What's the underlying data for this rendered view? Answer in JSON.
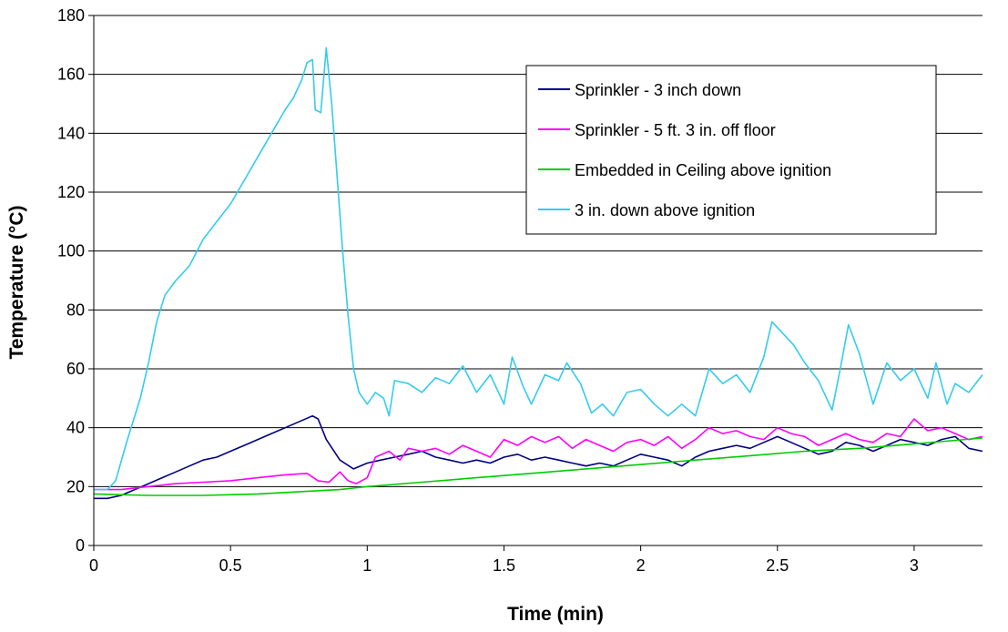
{
  "chart_data": {
    "type": "line",
    "xlabel": "Time (min)",
    "ylabel": "Temperature (°C)",
    "xlim": [
      0,
      3.25
    ],
    "ylim": [
      0,
      180
    ],
    "x_ticks": [
      "0",
      "0.5",
      "1",
      "1.5",
      "2",
      "2.5",
      "3"
    ],
    "y_ticks": [
      "0",
      "20",
      "40",
      "60",
      "80",
      "100",
      "120",
      "140",
      "160",
      "180"
    ],
    "grid": "horizontal",
    "legend_position": "top-right",
    "series": [
      {
        "name": "Sprinkler - 3 inch down",
        "color": "#000080",
        "points": [
          [
            0,
            16
          ],
          [
            0.05,
            16
          ],
          [
            0.1,
            17
          ],
          [
            0.15,
            19
          ],
          [
            0.2,
            21
          ],
          [
            0.25,
            23
          ],
          [
            0.3,
            25
          ],
          [
            0.35,
            27
          ],
          [
            0.4,
            29
          ],
          [
            0.45,
            30
          ],
          [
            0.5,
            32
          ],
          [
            0.55,
            34
          ],
          [
            0.6,
            36
          ],
          [
            0.65,
            38
          ],
          [
            0.7,
            40
          ],
          [
            0.75,
            42
          ],
          [
            0.8,
            44
          ],
          [
            0.82,
            43
          ],
          [
            0.85,
            36
          ],
          [
            0.9,
            29
          ],
          [
            0.95,
            26
          ],
          [
            1.0,
            28
          ],
          [
            1.05,
            29
          ],
          [
            1.1,
            30
          ],
          [
            1.15,
            31
          ],
          [
            1.2,
            32
          ],
          [
            1.25,
            30
          ],
          [
            1.3,
            29
          ],
          [
            1.35,
            28
          ],
          [
            1.4,
            29
          ],
          [
            1.45,
            28
          ],
          [
            1.5,
            30
          ],
          [
            1.55,
            31
          ],
          [
            1.6,
            29
          ],
          [
            1.65,
            30
          ],
          [
            1.7,
            29
          ],
          [
            1.75,
            28
          ],
          [
            1.8,
            27
          ],
          [
            1.85,
            28
          ],
          [
            1.9,
            27
          ],
          [
            1.95,
            29
          ],
          [
            2.0,
            31
          ],
          [
            2.05,
            30
          ],
          [
            2.1,
            29
          ],
          [
            2.15,
            27
          ],
          [
            2.2,
            30
          ],
          [
            2.25,
            32
          ],
          [
            2.3,
            33
          ],
          [
            2.35,
            34
          ],
          [
            2.4,
            33
          ],
          [
            2.45,
            35
          ],
          [
            2.5,
            37
          ],
          [
            2.55,
            35
          ],
          [
            2.6,
            33
          ],
          [
            2.65,
            31
          ],
          [
            2.7,
            32
          ],
          [
            2.75,
            35
          ],
          [
            2.8,
            34
          ],
          [
            2.85,
            32
          ],
          [
            2.9,
            34
          ],
          [
            2.95,
            36
          ],
          [
            3.0,
            35
          ],
          [
            3.05,
            34
          ],
          [
            3.1,
            36
          ],
          [
            3.15,
            37
          ],
          [
            3.2,
            33
          ],
          [
            3.25,
            32
          ]
        ]
      },
      {
        "name": "Sprinkler - 5 ft. 3 in. off floor",
        "color": "#ff00ff",
        "points": [
          [
            0,
            19
          ],
          [
            0.1,
            19
          ],
          [
            0.2,
            20
          ],
          [
            0.3,
            21
          ],
          [
            0.4,
            21.5
          ],
          [
            0.5,
            22
          ],
          [
            0.6,
            23
          ],
          [
            0.7,
            24
          ],
          [
            0.78,
            24.5
          ],
          [
            0.82,
            22
          ],
          [
            0.86,
            21.5
          ],
          [
            0.9,
            25
          ],
          [
            0.93,
            22
          ],
          [
            0.96,
            21
          ],
          [
            1.0,
            23
          ],
          [
            1.03,
            30
          ],
          [
            1.08,
            32
          ],
          [
            1.12,
            29
          ],
          [
            1.15,
            33
          ],
          [
            1.2,
            32
          ],
          [
            1.25,
            33
          ],
          [
            1.3,
            31
          ],
          [
            1.35,
            34
          ],
          [
            1.4,
            32
          ],
          [
            1.45,
            30
          ],
          [
            1.5,
            36
          ],
          [
            1.55,
            34
          ],
          [
            1.6,
            37
          ],
          [
            1.65,
            35
          ],
          [
            1.7,
            37
          ],
          [
            1.75,
            33
          ],
          [
            1.8,
            36
          ],
          [
            1.85,
            34
          ],
          [
            1.9,
            32
          ],
          [
            1.95,
            35
          ],
          [
            2.0,
            36
          ],
          [
            2.05,
            34
          ],
          [
            2.1,
            37
          ],
          [
            2.15,
            33
          ],
          [
            2.2,
            36
          ],
          [
            2.25,
            40
          ],
          [
            2.3,
            38
          ],
          [
            2.35,
            39
          ],
          [
            2.4,
            37
          ],
          [
            2.45,
            36
          ],
          [
            2.5,
            40
          ],
          [
            2.55,
            38
          ],
          [
            2.6,
            37
          ],
          [
            2.65,
            34
          ],
          [
            2.7,
            36
          ],
          [
            2.75,
            38
          ],
          [
            2.8,
            36
          ],
          [
            2.85,
            35
          ],
          [
            2.9,
            38
          ],
          [
            2.95,
            37
          ],
          [
            3.0,
            43
          ],
          [
            3.05,
            39
          ],
          [
            3.1,
            40
          ],
          [
            3.15,
            38
          ],
          [
            3.2,
            36
          ],
          [
            3.25,
            37
          ]
        ]
      },
      {
        "name": "Embedded in Ceiling above ignition",
        "color": "#00cc00",
        "points": [
          [
            0,
            17.5
          ],
          [
            0.2,
            17
          ],
          [
            0.4,
            17
          ],
          [
            0.6,
            17.5
          ],
          [
            0.8,
            18.5
          ],
          [
            0.9,
            19
          ],
          [
            1.0,
            20
          ],
          [
            1.2,
            21.5
          ],
          [
            1.4,
            23
          ],
          [
            1.6,
            24.5
          ],
          [
            1.8,
            26
          ],
          [
            2.0,
            27.5
          ],
          [
            2.2,
            29
          ],
          [
            2.4,
            30.5
          ],
          [
            2.6,
            32
          ],
          [
            2.8,
            33
          ],
          [
            3.0,
            34.5
          ],
          [
            3.25,
            36.5
          ]
        ]
      },
      {
        "name": "3 in. down above ignition",
        "color": "#33ccee",
        "points": [
          [
            0,
            19
          ],
          [
            0.05,
            19
          ],
          [
            0.08,
            22
          ],
          [
            0.12,
            35
          ],
          [
            0.17,
            50
          ],
          [
            0.2,
            62
          ],
          [
            0.23,
            76
          ],
          [
            0.26,
            85
          ],
          [
            0.3,
            90
          ],
          [
            0.35,
            95
          ],
          [
            0.4,
            104
          ],
          [
            0.45,
            110
          ],
          [
            0.5,
            116
          ],
          [
            0.55,
            124
          ],
          [
            0.6,
            132
          ],
          [
            0.65,
            140
          ],
          [
            0.7,
            148
          ],
          [
            0.73,
            152
          ],
          [
            0.76,
            158
          ],
          [
            0.78,
            164
          ],
          [
            0.8,
            165
          ],
          [
            0.81,
            148
          ],
          [
            0.83,
            147
          ],
          [
            0.85,
            169
          ],
          [
            0.87,
            150
          ],
          [
            0.89,
            125
          ],
          [
            0.91,
            100
          ],
          [
            0.93,
            78
          ],
          [
            0.95,
            60
          ],
          [
            0.97,
            52
          ],
          [
            1.0,
            48
          ],
          [
            1.03,
            52
          ],
          [
            1.06,
            50
          ],
          [
            1.08,
            44
          ],
          [
            1.1,
            56
          ],
          [
            1.15,
            55
          ],
          [
            1.2,
            52
          ],
          [
            1.25,
            57
          ],
          [
            1.3,
            55
          ],
          [
            1.35,
            61
          ],
          [
            1.4,
            52
          ],
          [
            1.45,
            58
          ],
          [
            1.5,
            48
          ],
          [
            1.53,
            64
          ],
          [
            1.57,
            54
          ],
          [
            1.6,
            48
          ],
          [
            1.65,
            58
          ],
          [
            1.7,
            56
          ],
          [
            1.73,
            62
          ],
          [
            1.78,
            55
          ],
          [
            1.82,
            45
          ],
          [
            1.86,
            48
          ],
          [
            1.9,
            44
          ],
          [
            1.95,
            52
          ],
          [
            2.0,
            53
          ],
          [
            2.05,
            48
          ],
          [
            2.1,
            44
          ],
          [
            2.15,
            48
          ],
          [
            2.2,
            44
          ],
          [
            2.25,
            60
          ],
          [
            2.3,
            55
          ],
          [
            2.35,
            58
          ],
          [
            2.4,
            52
          ],
          [
            2.45,
            64
          ],
          [
            2.48,
            76
          ],
          [
            2.52,
            72
          ],
          [
            2.56,
            68
          ],
          [
            2.6,
            62
          ],
          [
            2.65,
            56
          ],
          [
            2.7,
            46
          ],
          [
            2.73,
            60
          ],
          [
            2.76,
            75
          ],
          [
            2.8,
            65
          ],
          [
            2.85,
            48
          ],
          [
            2.9,
            62
          ],
          [
            2.95,
            56
          ],
          [
            3.0,
            60
          ],
          [
            3.05,
            50
          ],
          [
            3.08,
            62
          ],
          [
            3.12,
            48
          ],
          [
            3.15,
            55
          ],
          [
            3.2,
            52
          ],
          [
            3.25,
            58
          ]
        ]
      }
    ]
  }
}
